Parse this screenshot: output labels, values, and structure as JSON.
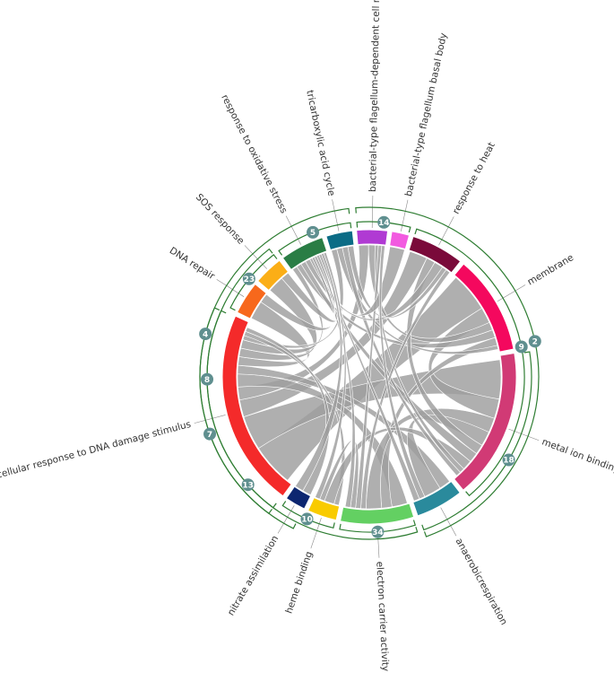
{
  "chart_data": {
    "type": "chord",
    "colors": {
      "ribbon": "#9e9e9e",
      "bracket": "#2e7d32",
      "bubble": "#5f8f8f"
    },
    "sectors": [
      {
        "label": "bacterial-type flagellum-dependent cell motility",
        "color": "#b03ad3",
        "size": 4.2
      },
      {
        "label": "bacterial-type flagellum basal body",
        "color": "#f25ae0",
        "size": 2.4
      },
      {
        "label": "response to heat",
        "color": "#7a0a3a",
        "size": 7.2
      },
      {
        "label": "membrane",
        "color": "#f4085e",
        "size": 13.5
      },
      {
        "label": "metal ion binding",
        "color": "#d13a75",
        "size": 20.5
      },
      {
        "label": "anaerobicrespiration",
        "color": "#2a8a9c",
        "size": 6.5
      },
      {
        "label": "electron carrier activity",
        "color": "#63d062",
        "size": 10
      },
      {
        "label": "heme binding",
        "color": "#f9cb00",
        "size": 4
      },
      {
        "label": "nitrate assimilation",
        "color": "#0d2670",
        "size": 2.8
      },
      {
        "label": "cellular response to DNA damage stimulus",
        "color": "#f42a2a",
        "size": 27
      },
      {
        "label": "DNA repair",
        "color": "#f7681c",
        "size": 4.5
      },
      {
        "label": "SOS response",
        "color": "#fbae16",
        "size": 4
      },
      {
        "label": "response to oxidative stress",
        "color": "#2a7d45",
        "size": 6
      },
      {
        "label": "tricarboxylic acid cycle",
        "color": "#0b6c86",
        "size": 3.6
      }
    ],
    "links": [
      [
        9,
        3,
        10
      ],
      [
        9,
        4,
        8
      ],
      [
        9,
        2,
        4
      ],
      [
        9,
        0,
        3
      ],
      [
        9,
        6,
        3
      ],
      [
        9,
        5,
        2
      ],
      [
        9,
        10,
        2
      ],
      [
        9,
        11,
        2
      ],
      [
        9,
        12,
        2
      ],
      [
        9,
        13,
        1
      ],
      [
        9,
        7,
        1
      ],
      [
        9,
        8,
        1
      ],
      [
        3,
        4,
        4
      ],
      [
        3,
        0,
        2
      ],
      [
        3,
        12,
        2
      ],
      [
        3,
        6,
        2
      ],
      [
        3,
        13,
        1
      ],
      [
        4,
        6,
        3
      ],
      [
        4,
        5,
        3
      ],
      [
        4,
        2,
        2
      ],
      [
        4,
        12,
        2
      ],
      [
        4,
        7,
        2
      ],
      [
        4,
        0,
        1
      ],
      [
        4,
        13,
        1
      ],
      [
        2,
        12,
        2
      ],
      [
        2,
        13,
        1
      ],
      [
        2,
        6,
        1
      ],
      [
        0,
        6,
        1
      ],
      [
        1,
        12,
        1
      ],
      [
        0,
        5,
        1
      ],
      [
        6,
        7,
        1
      ],
      [
        6,
        12,
        1
      ],
      [
        5,
        12,
        1
      ],
      [
        10,
        12,
        1
      ],
      [
        11,
        12,
        1
      ],
      [
        8,
        12,
        1
      ],
      [
        7,
        12,
        1
      ]
    ],
    "groups": [
      {
        "count": "14",
        "sectors": [
          0,
          1
        ],
        "level": 0
      },
      {
        "count": "5",
        "sectors": [
          12,
          13
        ],
        "level": 0
      },
      {
        "count": "23",
        "sectors": [
          10,
          11
        ],
        "level": 0
      },
      {
        "count": "8",
        "sectors": [
          9,
          11
        ],
        "level": 1
      },
      {
        "count": "4",
        "sectors": [
          9,
          13
        ],
        "level": 2
      },
      {
        "count": "9",
        "sectors": [
          2,
          4
        ],
        "level": 0
      },
      {
        "count": "18",
        "sectors": [
          4,
          5
        ],
        "level": 1
      },
      {
        "count": "34",
        "sectors": [
          6,
          6
        ],
        "level": 0
      },
      {
        "count": "10",
        "sectors": [
          7,
          8
        ],
        "level": 0
      },
      {
        "count": "13",
        "sectors": [
          6,
          9
        ],
        "level": 1
      },
      {
        "count": "7",
        "sectors": [
          8,
          9
        ],
        "level": 2
      },
      {
        "count": "2",
        "sectors": [
          0,
          5
        ],
        "level": 2
      }
    ]
  }
}
